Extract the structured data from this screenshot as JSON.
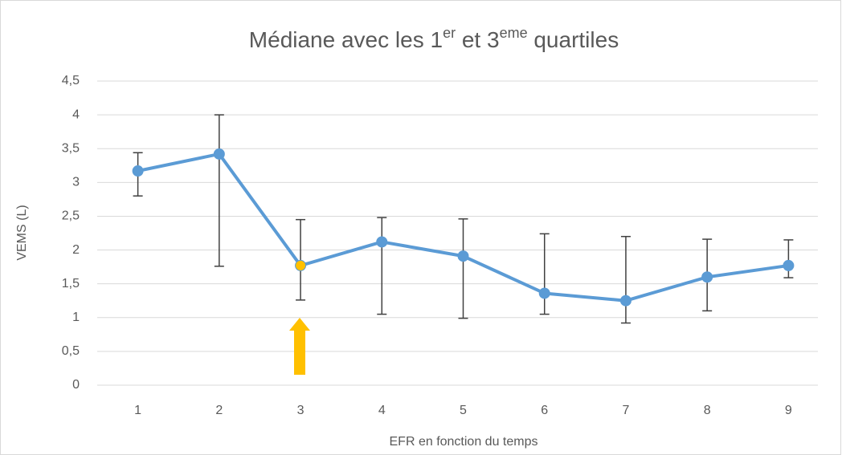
{
  "chart_data": {
    "type": "line",
    "title": [
      "Médiane avec les 1",
      "er",
      " et 3",
      "eme",
      " quartiles"
    ],
    "x_label": "EFR en fonction du temps",
    "y_label": "VEMS (L)",
    "categories": [
      "1",
      "2",
      "3",
      "4",
      "5",
      "6",
      "7",
      "8",
      "9"
    ],
    "series": [
      {
        "color": "#5b9bd5",
        "marker_colors": [
          "#5b9bd5",
          "#5b9bd5",
          "#ffc000",
          "#5b9bd5",
          "#5b9bd5",
          "#5b9bd5",
          "#5b9bd5",
          "#5b9bd5",
          "#5b9bd5"
        ],
        "values": [
          3.17,
          3.42,
          1.77,
          2.12,
          1.91,
          1.36,
          1.25,
          1.6,
          1.77
        ],
        "low": [
          2.8,
          1.76,
          1.26,
          1.05,
          0.99,
          1.05,
          0.92,
          1.1,
          1.59
        ],
        "high": [
          3.44,
          4.0,
          2.45,
          2.48,
          2.46,
          2.24,
          2.2,
          2.16,
          2.15
        ]
      }
    ],
    "ylim": [
      0,
      4.5
    ],
    "yticks": [
      0,
      {
        "value": 0.5,
        "label": "0,5"
      },
      1,
      {
        "value": 1.5,
        "label": "1,5"
      },
      2,
      {
        "value": 2.5,
        "label": "2,5"
      },
      3,
      {
        "value": 3.5,
        "label": "3,5"
      },
      4,
      {
        "value": 4.5,
        "label": "4,5"
      }
    ],
    "grid": true,
    "error_bar_color": "#404040"
  }
}
